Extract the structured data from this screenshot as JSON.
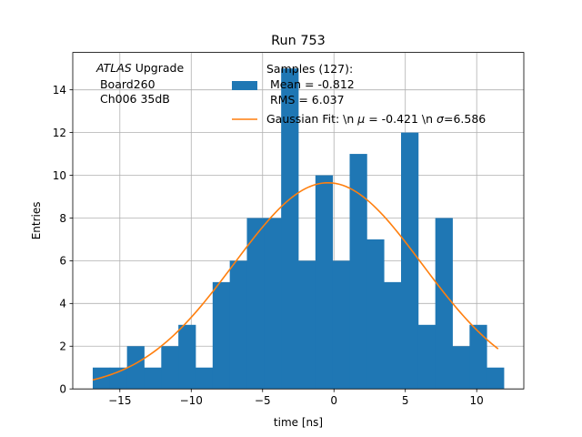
{
  "chart_data": {
    "type": "bar",
    "title": "Run 753",
    "xlabel": "time [ns]",
    "ylabel": "Entries",
    "xlim": [
      -18.3,
      13.3
    ],
    "ylim": [
      0,
      15.75
    ],
    "grid": true,
    "bar_color": "#1f77b4",
    "fit_color": "#ff7f0e",
    "bins": {
      "start": -16.9,
      "width": 1.2,
      "counts": [
        1,
        1,
        2,
        1,
        2,
        3,
        1,
        5,
        6,
        8,
        8,
        15,
        6,
        10,
        6,
        11,
        7,
        5,
        12,
        3,
        8,
        2,
        3,
        1
      ]
    },
    "x_ticks": [
      -15,
      -10,
      -5,
      0,
      5,
      10
    ],
    "x_tick_labels": [
      "−15",
      "−10",
      "−5",
      "0",
      "5",
      "10"
    ],
    "y_ticks": [
      0,
      2,
      4,
      6,
      8,
      10,
      12,
      14
    ],
    "y_tick_labels": [
      "0",
      "2",
      "4",
      "6",
      "8",
      "10",
      "12",
      "14"
    ],
    "fit": {
      "type": "gaussian",
      "amplitude": 9.65,
      "mu": -0.421,
      "sigma": 6.586,
      "x_range": [
        -16.9,
        11.5
      ]
    },
    "annotation": {
      "italic": "ATLAS",
      "rest": " Upgrade",
      "line2": " Board260",
      "line3": " Ch006 35dB"
    },
    "legend": {
      "position": "upper-right",
      "hist_lines": [
        "Samples (127):",
        " Mean = -0.812",
        " RMS = 6.037"
      ],
      "fit_text_1": "Gaussian Fit: \\n ",
      "fit_mu_sym": "μ",
      "fit_text_2": " = -0.421 \\n ",
      "fit_sigma_sym": "σ",
      "fit_text_3": "=6.586"
    }
  }
}
